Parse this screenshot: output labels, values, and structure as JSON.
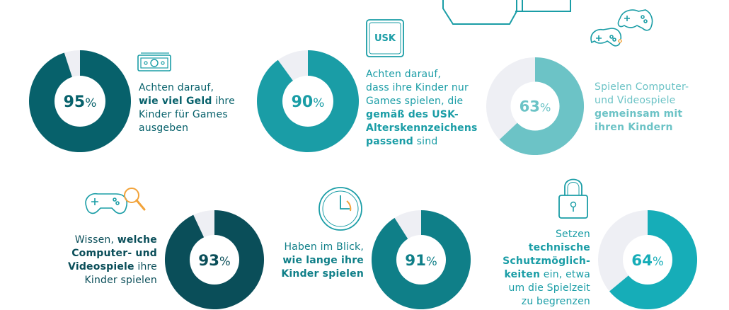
{
  "chart_data": [
    {
      "type": "pie",
      "value": 95,
      "label": "95",
      "unit": "%",
      "text_parts": [
        {
          "t": "Achten darauf,",
          "b": false,
          "br": true
        },
        {
          "t": "wie viel Geld",
          "b": true
        },
        {
          "t": " ihre",
          "b": false,
          "br": true
        },
        {
          "t": "Kinder für Games",
          "b": false,
          "br": true
        },
        {
          "t": "ausgeben",
          "b": false
        }
      ],
      "colors": {
        "fill": "#07616b",
        "rest": "#eeeff4",
        "label": "#07616b",
        "text": "#07616b"
      },
      "icon": "money-icon"
    },
    {
      "type": "pie",
      "value": 90,
      "label": "90",
      "unit": "%",
      "text_parts": [
        {
          "t": "Achten darauf,",
          "b": false,
          "br": true
        },
        {
          "t": "dass ihre Kinder nur",
          "b": false,
          "br": true
        },
        {
          "t": "Games spielen, die",
          "b": false,
          "br": true
        },
        {
          "t": "gemäß des USK-",
          "b": true,
          "br": true
        },
        {
          "t": "Alterskennzeichens",
          "b": true,
          "br": true
        },
        {
          "t": "passend",
          "b": true
        },
        {
          "t": " sind",
          "b": false
        }
      ],
      "colors": {
        "fill": "#1a9da6",
        "rest": "#eeeff4",
        "label": "#1a9da6",
        "text": "#1a9da6"
      },
      "icon": "usk-badge-icon",
      "icon_text": "USK"
    },
    {
      "type": "pie",
      "value": 63,
      "label": "63",
      "unit": "%",
      "text_parts": [
        {
          "t": "Spielen Computer-",
          "b": false,
          "br": true
        },
        {
          "t": "und Videospiele",
          "b": false,
          "br": true
        },
        {
          "t": "gemeinsam mit",
          "b": true,
          "br": true
        },
        {
          "t": "ihren Kindern",
          "b": true
        }
      ],
      "colors": {
        "fill": "#6cc3c6",
        "rest": "#eeeff4",
        "label": "#6cc3c6",
        "text": "#6cc3c6"
      },
      "icon": "two-controllers-icon"
    },
    {
      "type": "pie",
      "value": 93,
      "label": "93",
      "unit": "%",
      "text_parts": [
        {
          "t": "Wissen, ",
          "b": false
        },
        {
          "t": "welche",
          "b": true,
          "br": true
        },
        {
          "t": "Computer- und",
          "b": true,
          "br": true
        },
        {
          "t": "Videospiele",
          "b": true
        },
        {
          "t": " ihre",
          "b": false,
          "br": true
        },
        {
          "t": "Kinder spielen",
          "b": false
        }
      ],
      "colors": {
        "fill": "#0a4e59",
        "rest": "#eeeff4",
        "label": "#0a4e59",
        "text": "#0a4e59"
      },
      "icon": "controller-magnifier-icon"
    },
    {
      "type": "pie",
      "value": 91,
      "label": "91",
      "unit": "%",
      "text_parts": [
        {
          "t": "Haben im Blick,",
          "b": false,
          "br": true
        },
        {
          "t": "wie lange ihre",
          "b": true,
          "br": true
        },
        {
          "t": "Kinder spielen",
          "b": true
        }
      ],
      "colors": {
        "fill": "#0f7f88",
        "rest": "#eeeff4",
        "label": "#0f7f88",
        "text": "#0f7f88"
      },
      "icon": "clock-icon"
    },
    {
      "type": "pie",
      "value": 64,
      "label": "64",
      "unit": "%",
      "text_parts": [
        {
          "t": "Setzen ",
          "b": false
        },
        {
          "t": "technische",
          "b": true,
          "br": true
        },
        {
          "t": "Schutzmöglich-",
          "b": true,
          "br": true
        },
        {
          "t": "keiten",
          "b": true
        },
        {
          "t": " ein, etwa",
          "b": false,
          "br": true
        },
        {
          "t": "um die Spielzeit",
          "b": false,
          "br": true
        },
        {
          "t": "zu begrenzen",
          "b": false
        }
      ],
      "colors": {
        "fill": "#16adb8",
        "rest": "#eeeff4",
        "label": "#16adb8",
        "text": "#1a9da6"
      },
      "icon": "padlock-icon"
    }
  ],
  "accent": {
    "orange": "#f2a33a",
    "line": "#1a9da6"
  }
}
